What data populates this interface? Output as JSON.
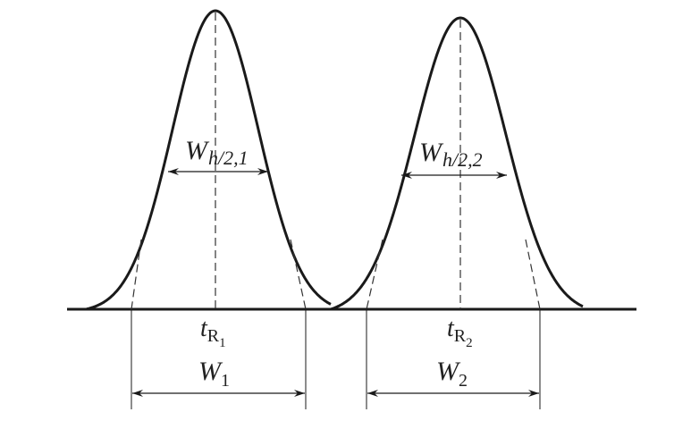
{
  "peaks": [
    {
      "half_width_label": {
        "main": "W",
        "sub": "h/2,1"
      },
      "retention_label": {
        "main": "t",
        "sub": "R",
        "subsub": "1"
      },
      "width_label": {
        "main": "W",
        "sub": "1"
      }
    },
    {
      "half_width_label": {
        "main": "W",
        "sub": "h/2,2"
      },
      "retention_label": {
        "main": "t",
        "sub": "R",
        "subsub": "2"
      },
      "width_label": {
        "main": "W",
        "sub": "2"
      }
    }
  ],
  "colors": {
    "line": "#1a1a1a",
    "background": "#ffffff"
  }
}
